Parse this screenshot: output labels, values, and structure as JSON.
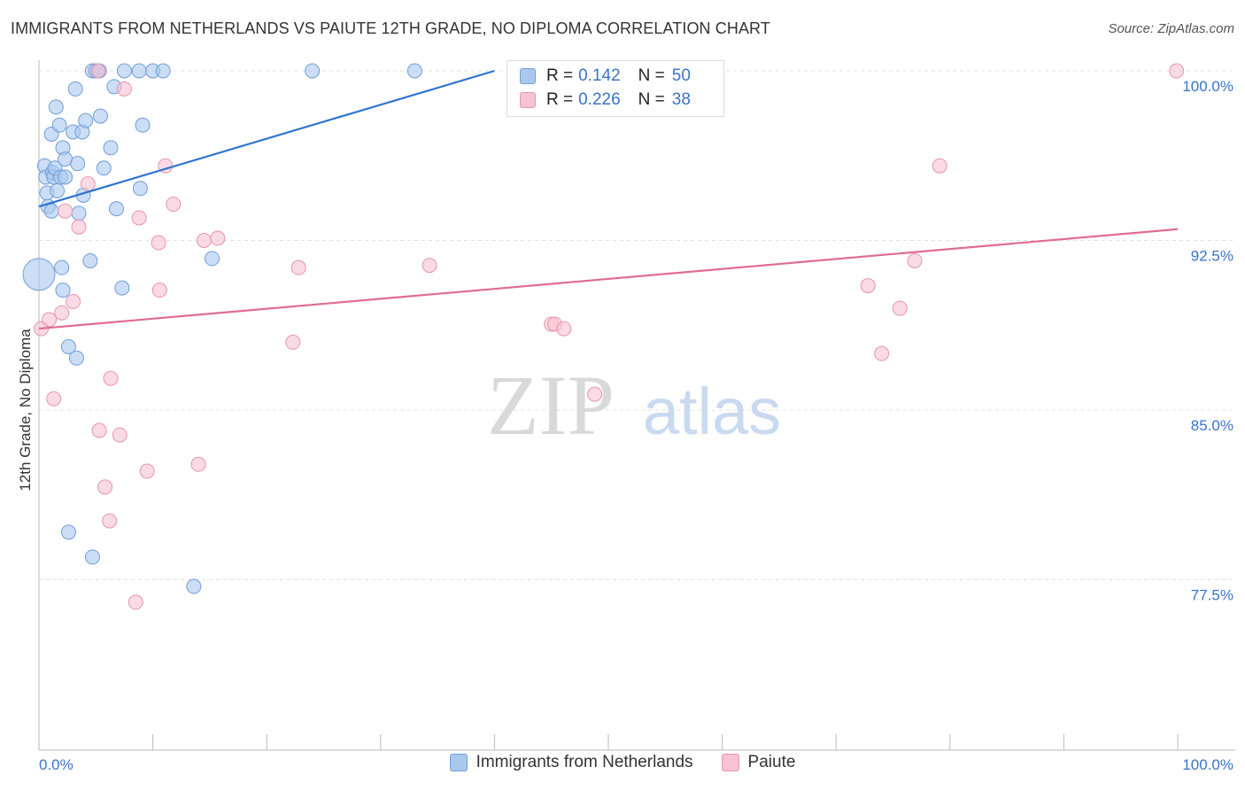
{
  "title": "IMMIGRANTS FROM NETHERLANDS VS PAIUTE 12TH GRADE, NO DIPLOMA CORRELATION CHART",
  "source": "Source: ZipAtlas.com",
  "watermark": {
    "zip": "ZIP",
    "atlas": "atlas"
  },
  "legend_top": [
    {
      "r_label": "R =",
      "r_value": "0.142",
      "n_label": "N =",
      "n_value": "50"
    },
    {
      "r_label": "R =",
      "r_value": "0.226",
      "n_label": "N =",
      "n_value": "38"
    }
  ],
  "legend_bottom": [
    "Immigrants from Netherlands",
    "Paiute"
  ],
  "chart_data": {
    "type": "scatter",
    "title": "IMMIGRANTS FROM NETHERLANDS VS PAIUTE 12TH GRADE, NO DIPLOMA CORRELATION CHART",
    "xlabel": "",
    "ylabel": "12th Grade, No Diploma",
    "xlim": [
      0,
      100
    ],
    "ylim": [
      70.5,
      101.5
    ],
    "x_tick_labels": [
      "0.0%",
      "100.0%"
    ],
    "y_ticks": [
      100.0,
      92.5,
      85.0,
      77.5
    ],
    "y_tick_labels": [
      "100.0%",
      "92.5%",
      "85.0%",
      "77.5%"
    ],
    "grid": "horizontal dashed",
    "legend": "bottom-center",
    "colors": {
      "blue_fill": "#aac8ee",
      "blue_stroke": "#6f9fd8",
      "blue_line": "#2f74d0",
      "pink_fill": "#f7c2d2",
      "pink_stroke": "#e895b0",
      "pink_line": "#e06b94",
      "tick_label": "#3a73c8"
    },
    "series": [
      {
        "name": "Immigrants from Netherlands",
        "trend": {
          "x0": 0,
          "y0": 94.0,
          "x1": 40,
          "y1": 100.0
        },
        "points": [
          [
            0.0,
            91.0
          ],
          [
            0.5,
            95.8
          ],
          [
            0.6,
            95.3
          ],
          [
            0.7,
            94.6
          ],
          [
            0.8,
            94.0
          ],
          [
            1.1,
            97.2
          ],
          [
            1.1,
            93.8
          ],
          [
            1.2,
            95.5
          ],
          [
            1.3,
            95.3
          ],
          [
            1.4,
            95.7
          ],
          [
            1.5,
            98.4
          ],
          [
            1.6,
            94.7
          ],
          [
            1.8,
            97.6
          ],
          [
            1.9,
            95.3
          ],
          [
            2.0,
            91.3
          ],
          [
            2.1,
            90.3
          ],
          [
            2.1,
            96.6
          ],
          [
            2.3,
            96.1
          ],
          [
            2.3,
            95.3
          ],
          [
            2.6,
            87.8
          ],
          [
            2.6,
            79.6
          ],
          [
            3.0,
            97.3
          ],
          [
            3.2,
            99.2
          ],
          [
            3.3,
            87.3
          ],
          [
            3.4,
            95.9
          ],
          [
            3.5,
            93.7
          ],
          [
            3.8,
            97.3
          ],
          [
            3.9,
            94.5
          ],
          [
            4.1,
            97.8
          ],
          [
            4.5,
            91.6
          ],
          [
            4.7,
            78.5
          ],
          [
            4.7,
            100.0
          ],
          [
            5.0,
            100.0
          ],
          [
            5.3,
            100.0
          ],
          [
            5.4,
            98.0
          ],
          [
            5.7,
            95.7
          ],
          [
            6.3,
            96.6
          ],
          [
            6.6,
            99.3
          ],
          [
            6.8,
            93.9
          ],
          [
            7.3,
            90.4
          ],
          [
            7.5,
            100.0
          ],
          [
            8.8,
            100.0
          ],
          [
            8.9,
            94.8
          ],
          [
            9.1,
            97.6
          ],
          [
            10.0,
            100.0
          ],
          [
            10.9,
            100.0
          ],
          [
            13.6,
            77.2
          ],
          [
            15.2,
            91.7
          ],
          [
            24.0,
            100.0
          ],
          [
            33.0,
            100.0
          ]
        ]
      },
      {
        "name": "Paiute",
        "trend": {
          "x0": 0,
          "y0": 88.6,
          "x1": 100,
          "y1": 93.0
        },
        "points": [
          [
            0.2,
            88.6
          ],
          [
            0.9,
            89.0
          ],
          [
            1.3,
            85.5
          ],
          [
            2.0,
            89.3
          ],
          [
            2.3,
            93.8
          ],
          [
            3.0,
            89.8
          ],
          [
            3.5,
            93.1
          ],
          [
            4.3,
            95.0
          ],
          [
            5.2,
            100.0
          ],
          [
            5.3,
            84.1
          ],
          [
            5.8,
            81.6
          ],
          [
            6.2,
            80.1
          ],
          [
            6.3,
            86.4
          ],
          [
            7.1,
            83.9
          ],
          [
            7.5,
            99.2
          ],
          [
            8.5,
            76.5
          ],
          [
            8.8,
            93.5
          ],
          [
            9.5,
            82.3
          ],
          [
            10.5,
            92.4
          ],
          [
            10.6,
            90.3
          ],
          [
            11.1,
            95.8
          ],
          [
            11.8,
            94.1
          ],
          [
            14.0,
            82.6
          ],
          [
            14.5,
            92.5
          ],
          [
            15.7,
            92.6
          ],
          [
            22.3,
            88.0
          ],
          [
            22.8,
            91.3
          ],
          [
            34.3,
            91.4
          ],
          [
            45.0,
            88.8
          ],
          [
            45.3,
            88.8
          ],
          [
            46.1,
            88.6
          ],
          [
            48.8,
            85.7
          ],
          [
            72.8,
            90.5
          ],
          [
            74.0,
            87.5
          ],
          [
            75.6,
            89.5
          ],
          [
            76.9,
            91.6
          ],
          [
            79.1,
            95.8
          ],
          [
            99.9,
            100.0
          ]
        ]
      }
    ]
  }
}
